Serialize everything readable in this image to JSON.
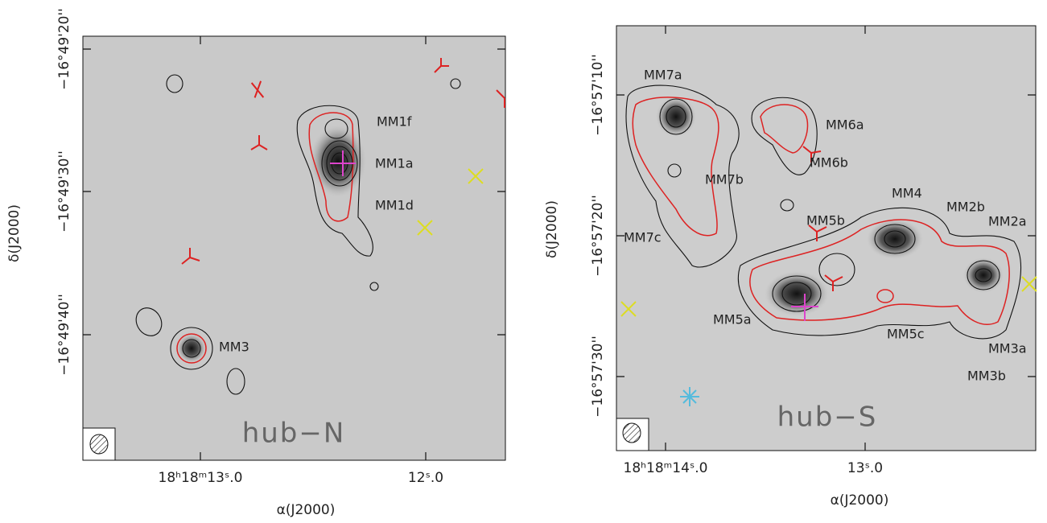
{
  "left_panel": {
    "name": "hub−N",
    "y_ticks": [
      "−16°49'20''",
      "−16°49'30''",
      "−16°49'40''"
    ],
    "x_ticks": [
      "18ʰ18ᵐ13ˢ.0",
      "12ˢ.0"
    ],
    "x_title": "α(J2000)",
    "y_title": "δ(J2000)",
    "sources": [
      "MM1f",
      "MM1a",
      "MM1d",
      "MM3"
    ]
  },
  "right_panel": {
    "name": "hub−S",
    "y_ticks": [
      "−16°57'10''",
      "−16°57'20''",
      "−16°57'30''"
    ],
    "x_ticks": [
      "18ʰ18ᵐ14ˢ.0",
      "13ˢ.0"
    ],
    "x_title": "α(J2000)",
    "y_title": "δ(J2000)",
    "sources": [
      "MM7a",
      "MM6a",
      "MM6b",
      "MM7b",
      "MM7c",
      "MM4",
      "MM5b",
      "MM2b",
      "MM2a",
      "MM5a",
      "MM5c",
      "MM3a",
      "MM3b"
    ]
  }
}
